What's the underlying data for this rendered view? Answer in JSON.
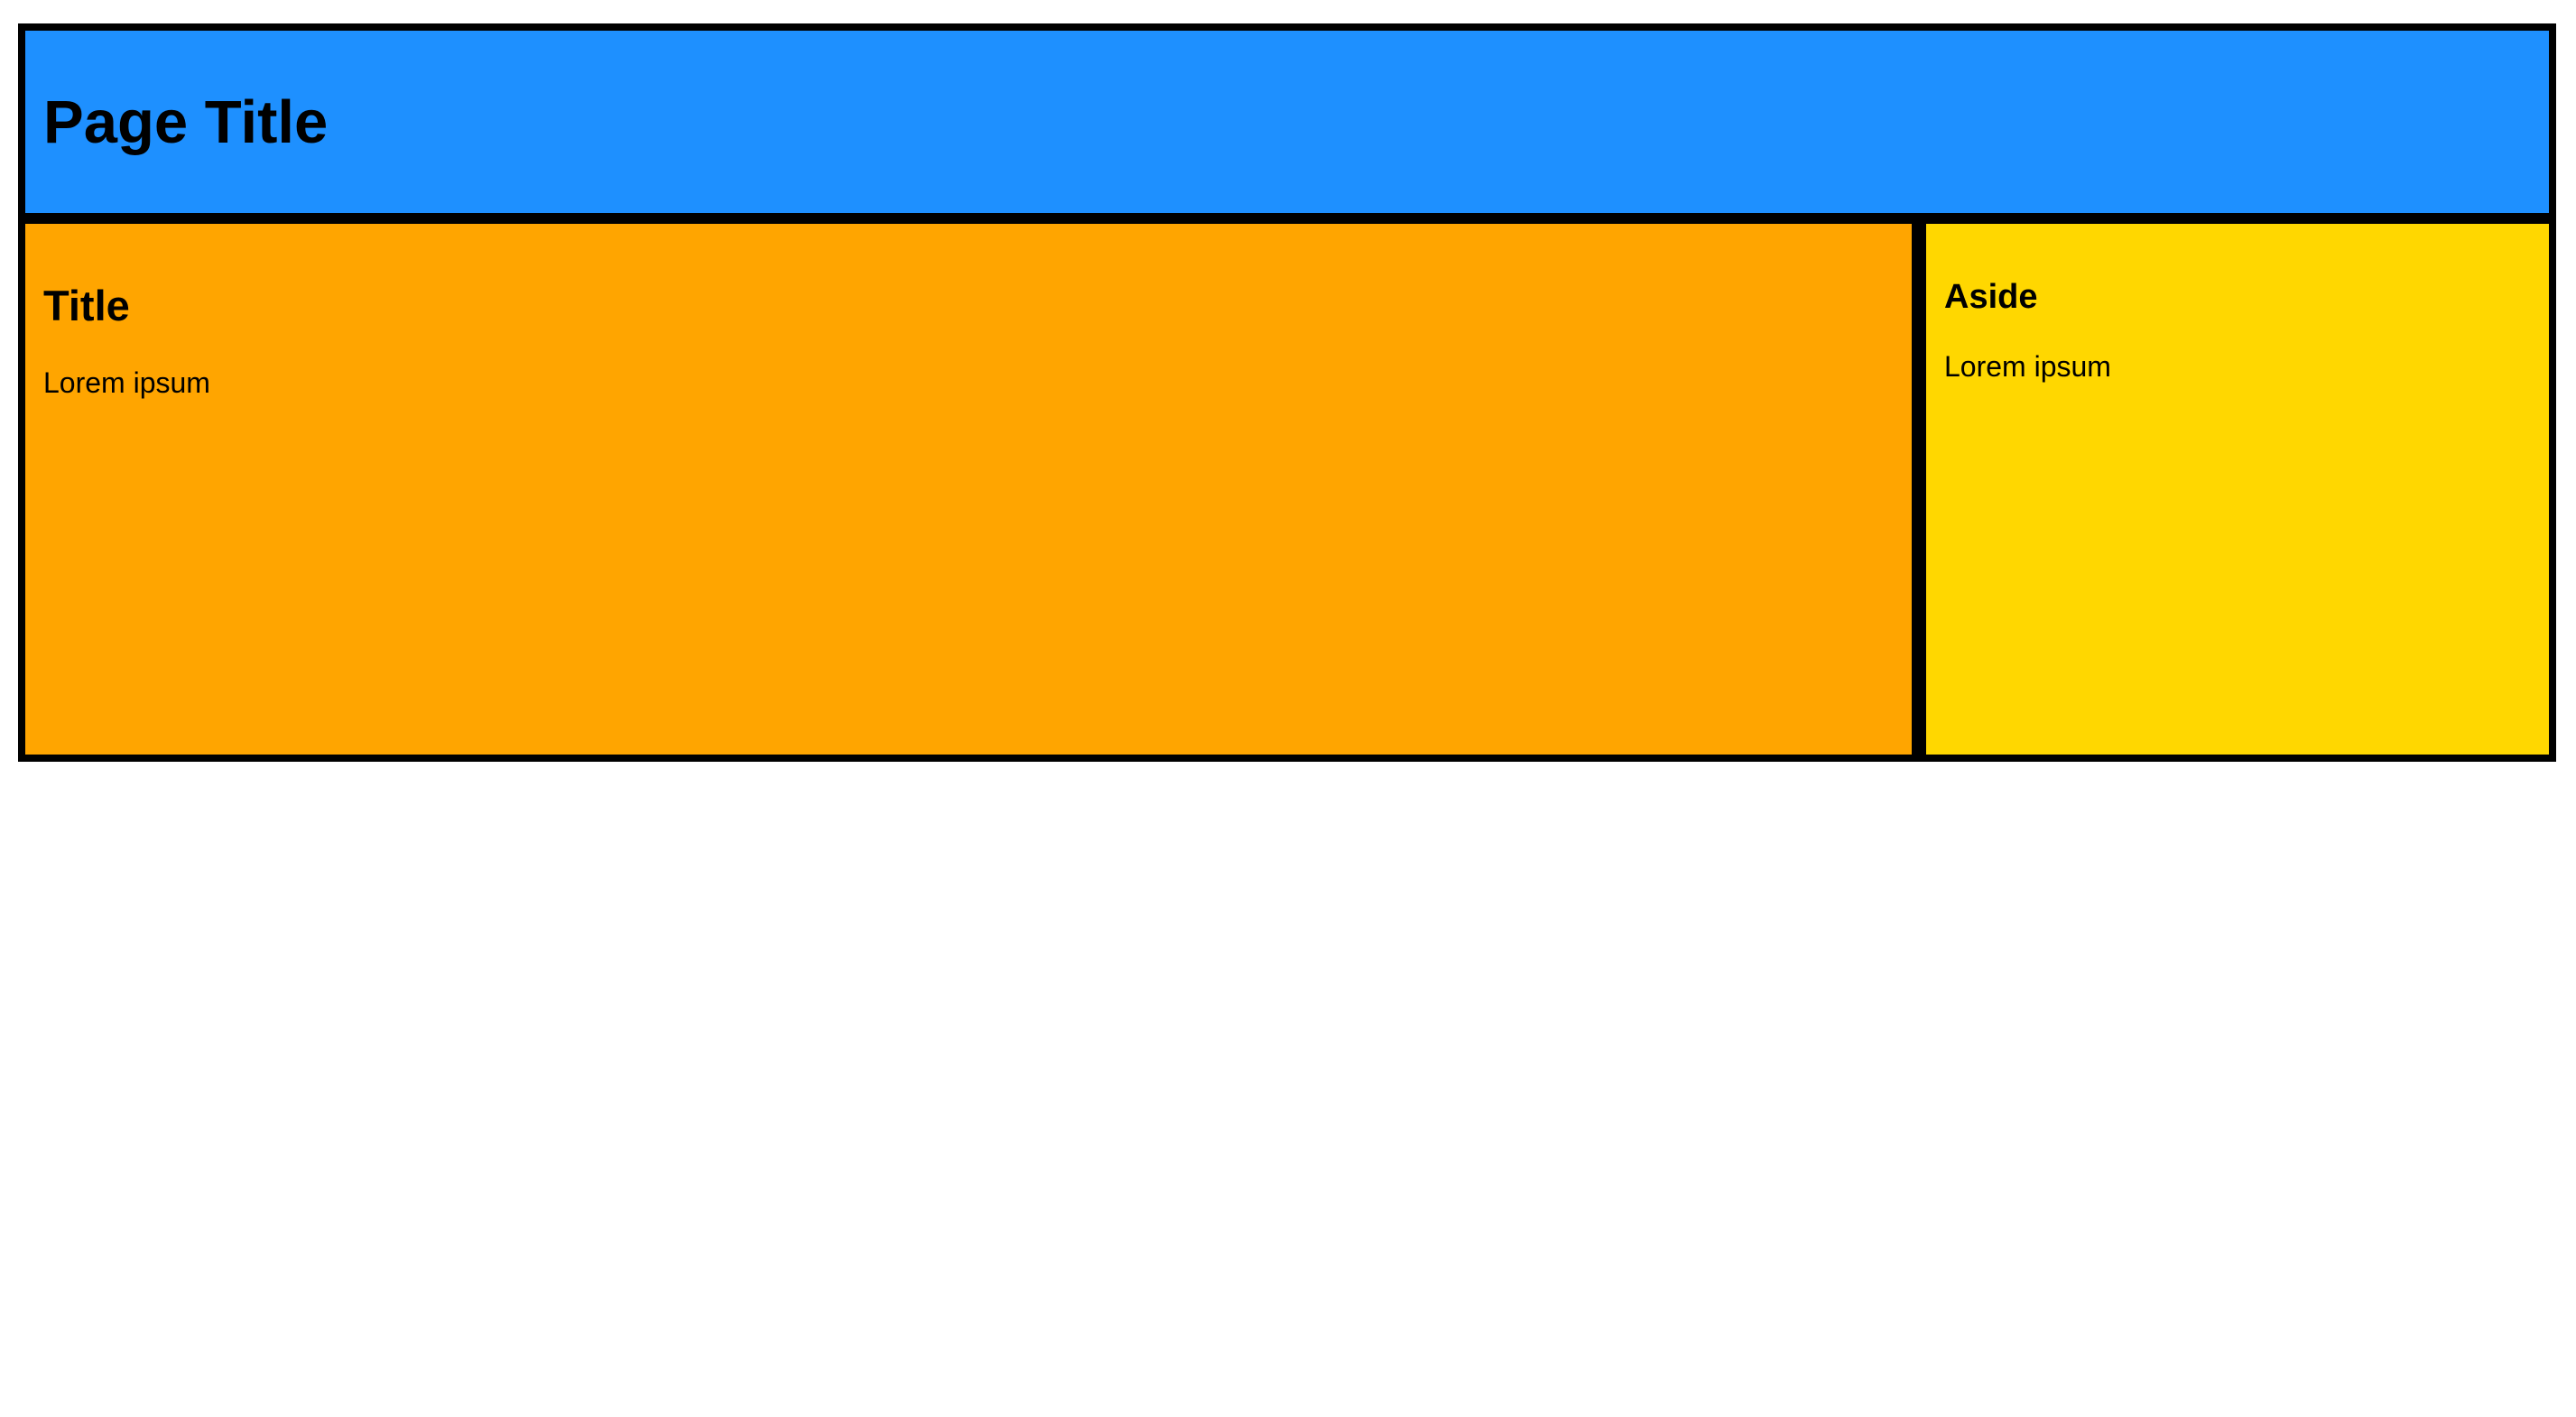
{
  "header": {
    "title": "Page Title",
    "background_color": "#1e90ff"
  },
  "main": {
    "title": "Title",
    "text": "Lorem ipsum",
    "background_color": "#ffa500"
  },
  "aside": {
    "title": "Aside",
    "text": "Lorem ipsum",
    "background_color": "#ffd700"
  },
  "border_color": "#000000"
}
